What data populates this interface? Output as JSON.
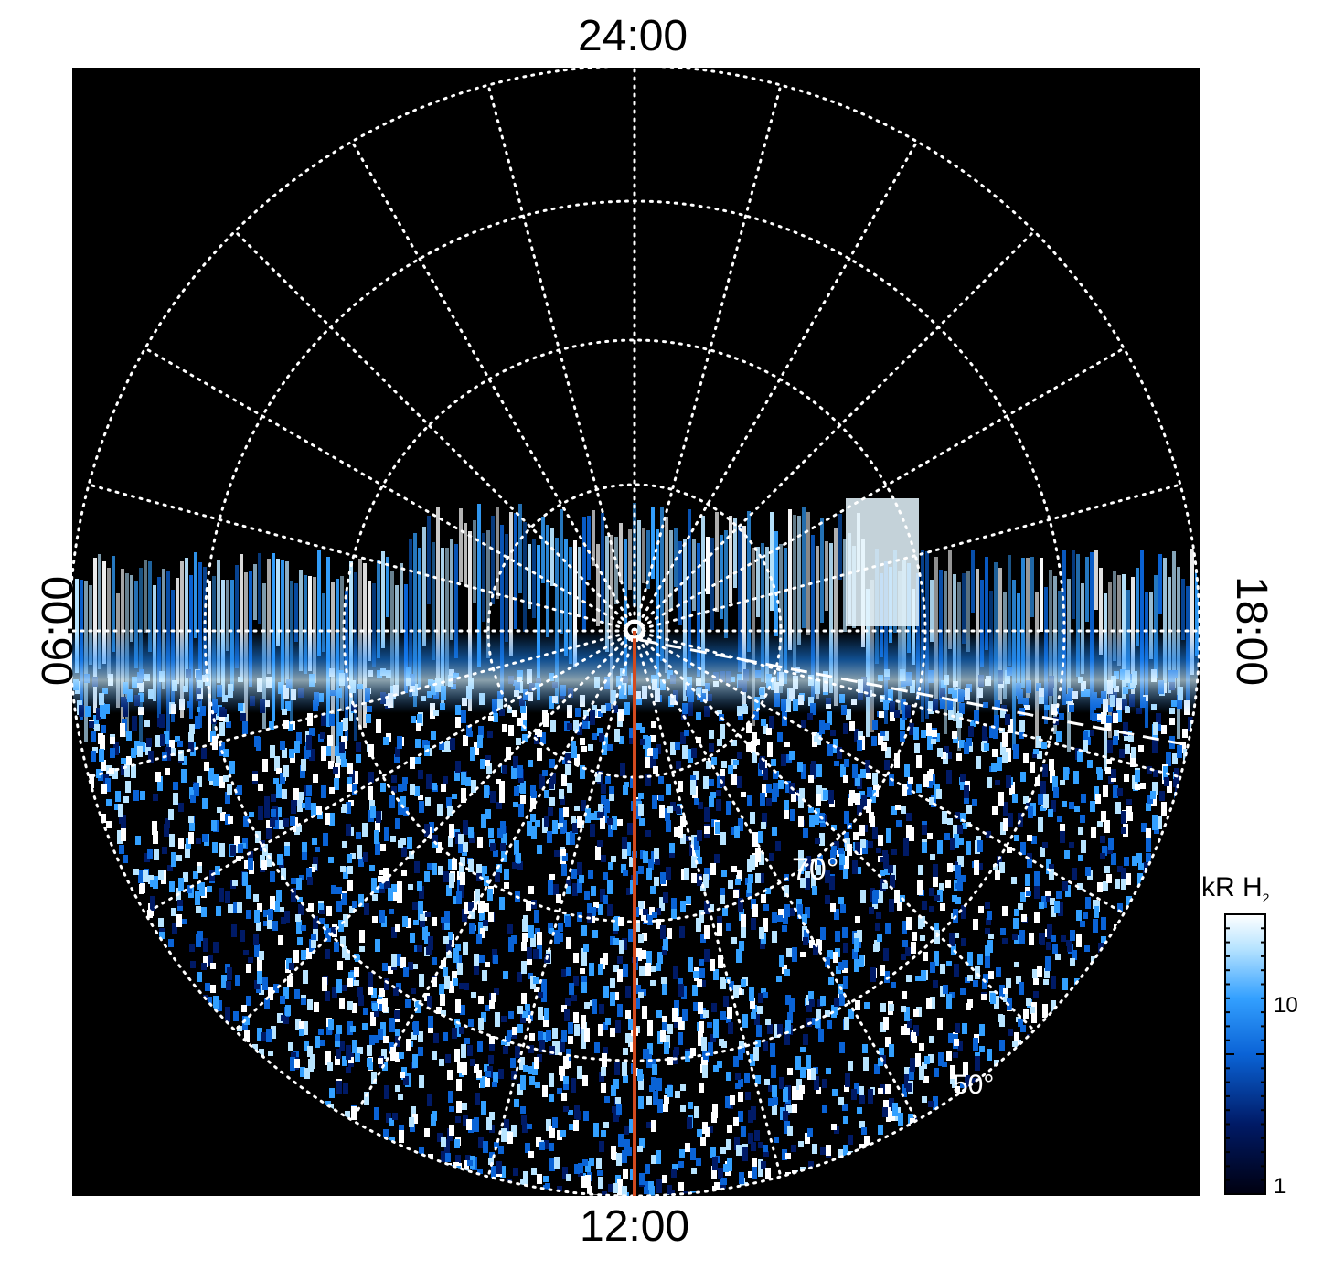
{
  "image": {
    "description_labels": {
      "top": "24:00",
      "bottom": "12:00",
      "left": "06:00",
      "right": "18:00"
    },
    "latitude_labels": [
      "70°",
      "50°"
    ],
    "colorbar": {
      "title": "kR H",
      "title_subscript": "2",
      "ticks": [
        "10",
        "1"
      ],
      "colors": [
        "#000010",
        "#001a66",
        "#0a63d6",
        "#33a0ff",
        "#b8e4ff",
        "#ffffff"
      ]
    },
    "colors": {
      "background": "#000000",
      "grid": "#ffffff",
      "meridian_line": "#d24a1e",
      "aurora_blue": "#1e8cff",
      "aurora_light": "#bfe8ff"
    }
  }
}
